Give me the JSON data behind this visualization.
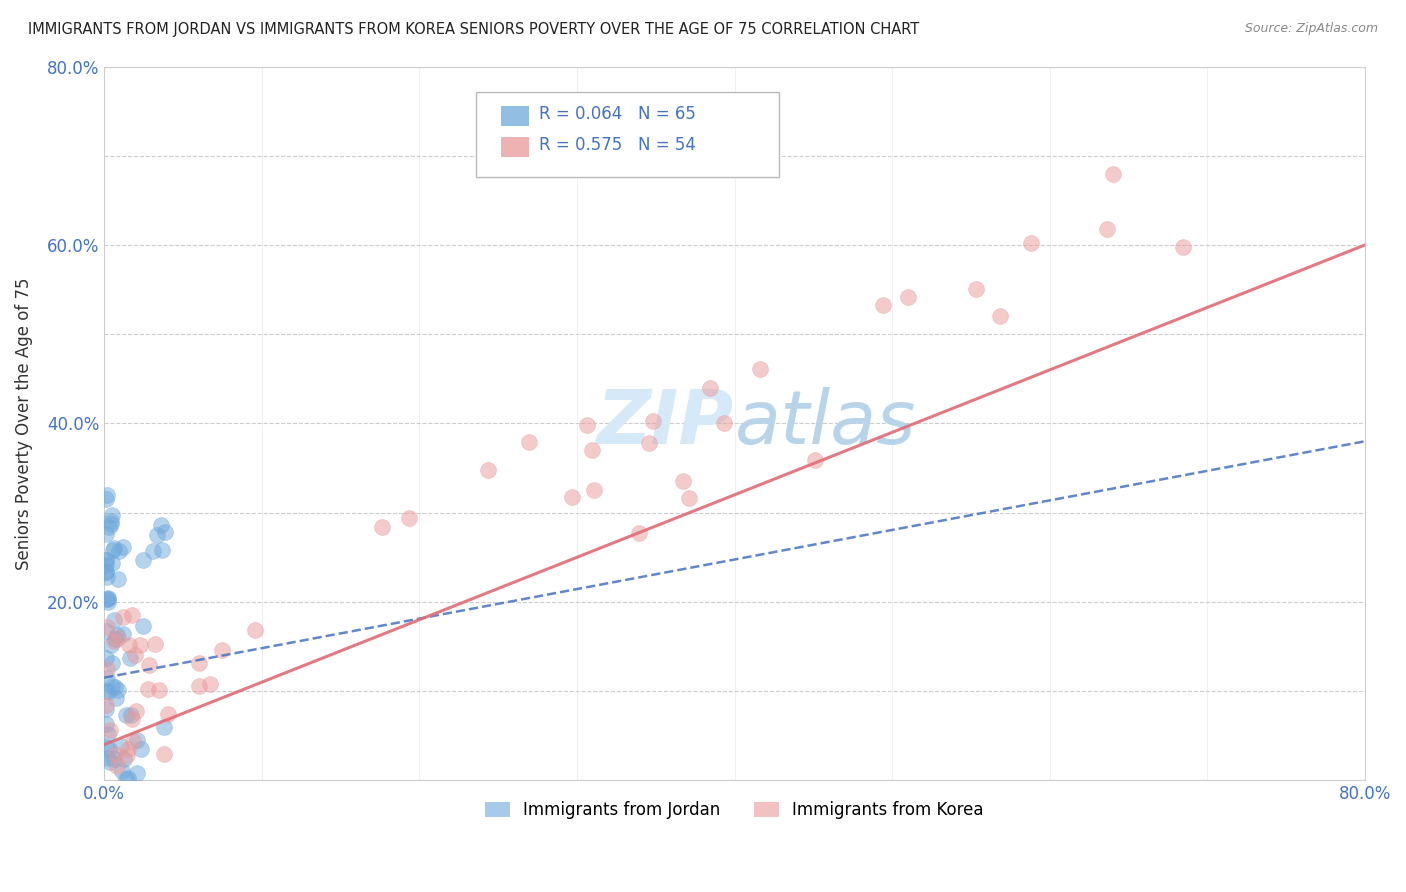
{
  "title": "IMMIGRANTS FROM JORDAN VS IMMIGRANTS FROM KOREA SENIORS POVERTY OVER THE AGE OF 75 CORRELATION CHART",
  "source": "Source: ZipAtlas.com",
  "ylabel": "Seniors Poverty Over the Age of 75",
  "xlim": [
    0,
    0.8
  ],
  "ylim": [
    0,
    0.8
  ],
  "jordan_color": "#6fa8dc",
  "korea_color": "#ea9999",
  "jordan_R": 0.064,
  "jordan_N": 65,
  "korea_R": 0.575,
  "korea_N": 54,
  "background_color": "#ffffff",
  "grid_color": "#cccccc",
  "tick_label_color": "#4472c4",
  "legend_R_color": "#4472c4",
  "watermark_color": "#d6e9f8",
  "jordan_trend_color": "#4472c4",
  "korea_trend_color": "#e06c75"
}
